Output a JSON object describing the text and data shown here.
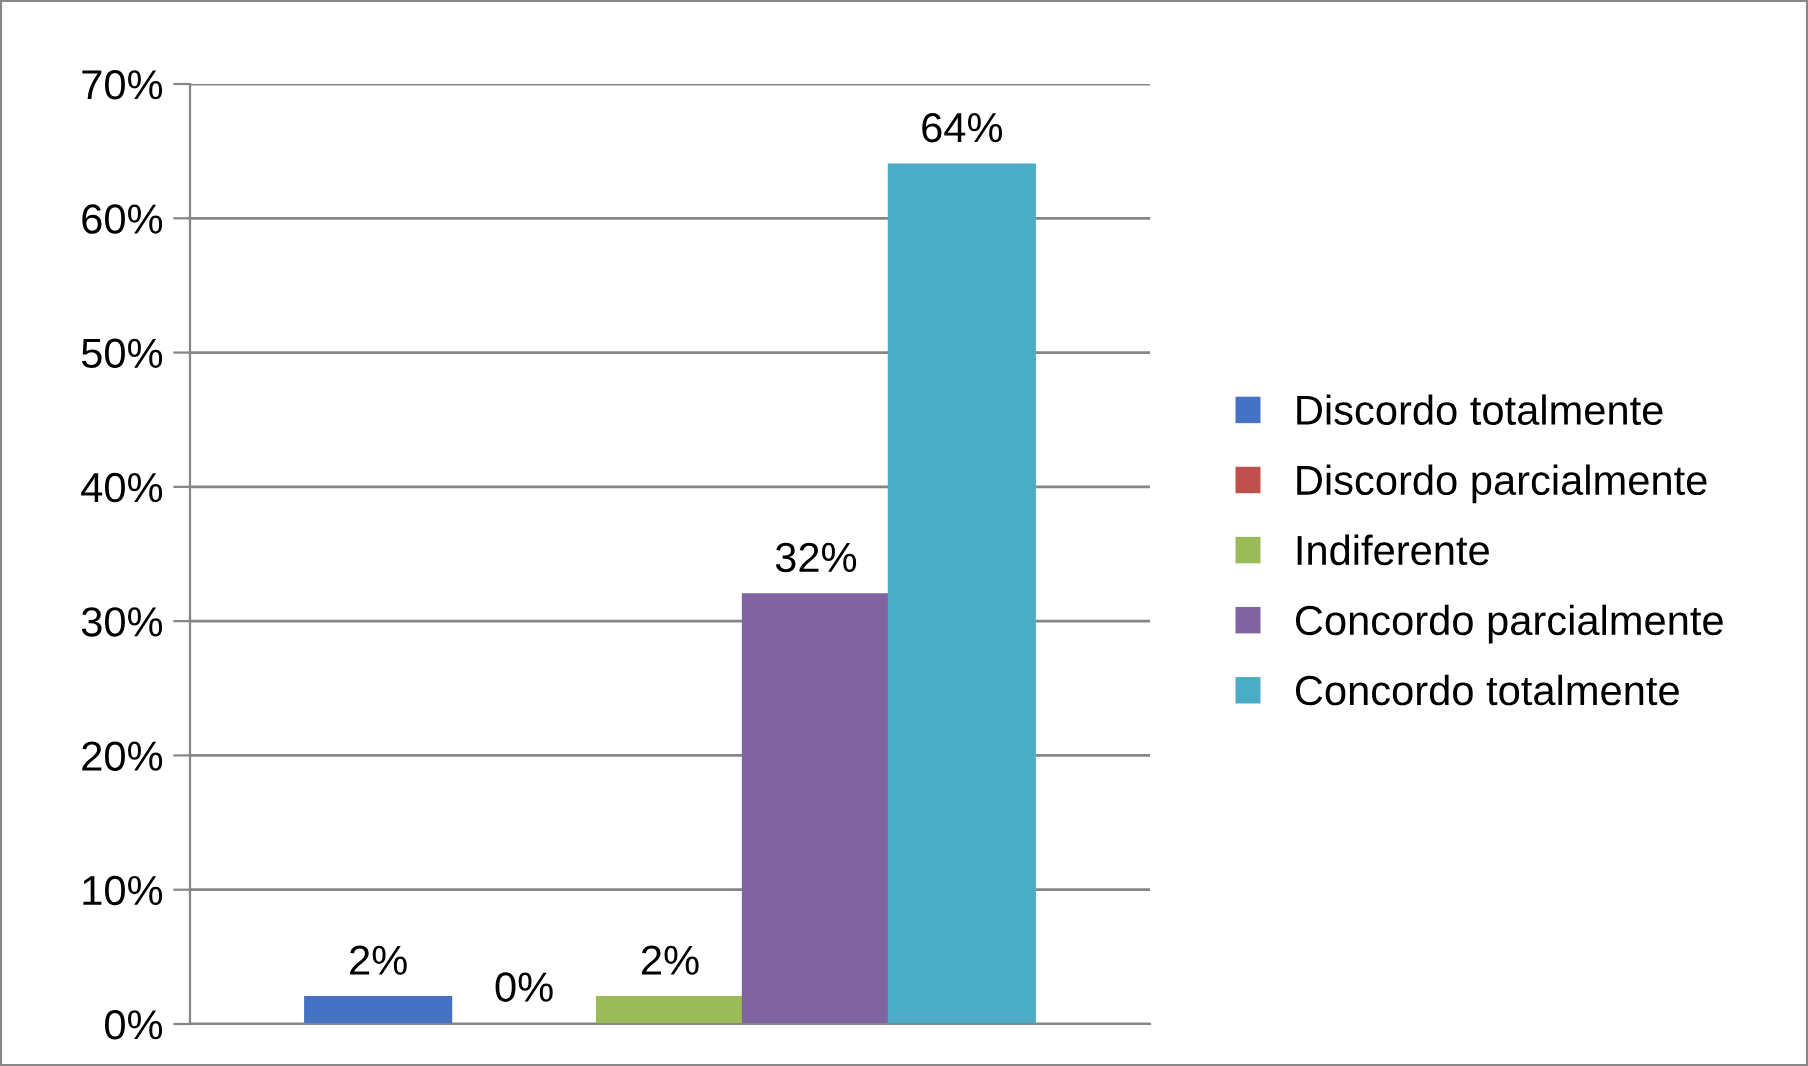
{
  "chart_data": {
    "type": "bar",
    "categories": [
      null
    ],
    "series": [
      {
        "name": "Discordo totalmente",
        "color": "#4472c4",
        "values": [
          2
        ],
        "value_labels": [
          "2%"
        ]
      },
      {
        "name": "Discordo parcialmente",
        "color": "#c0504d",
        "values": [
          0
        ],
        "value_labels": [
          "0%"
        ]
      },
      {
        "name": "Indiferente",
        "color": "#9bbb59",
        "values": [
          2
        ],
        "value_labels": [
          "2%"
        ]
      },
      {
        "name": "Concordo parcialmente",
        "color": "#8064a2",
        "values": [
          32
        ],
        "value_labels": [
          "32%"
        ]
      },
      {
        "name": "Concordo totalmente",
        "color": "#4bacc6",
        "values": [
          64
        ],
        "value_labels": [
          "64%"
        ]
      }
    ],
    "ylim": [
      0,
      70
    ],
    "yticks": [
      {
        "value": 0,
        "label": "0%"
      },
      {
        "value": 10,
        "label": "10%"
      },
      {
        "value": 20,
        "label": "20%"
      },
      {
        "value": 30,
        "label": "30%"
      },
      {
        "value": 40,
        "label": "40%"
      },
      {
        "value": 50,
        "label": "50%"
      },
      {
        "value": 60,
        "label": "60%"
      },
      {
        "value": 70,
        "label": "70%"
      }
    ],
    "grid": "y",
    "legend": "right"
  }
}
